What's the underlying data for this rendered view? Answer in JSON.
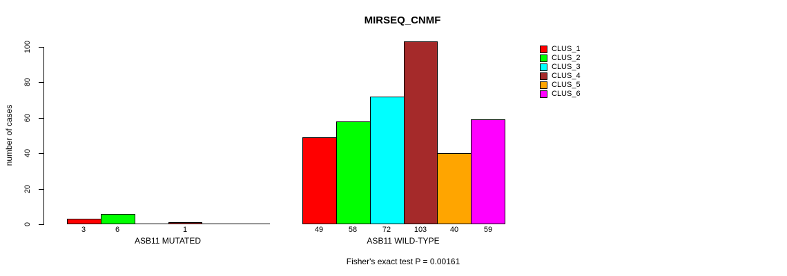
{
  "title": "MIRSEQ_CNMF",
  "footer": "Fisher's exact test P = 0.00161",
  "chart_data": {
    "type": "bar",
    "title": "MIRSEQ_CNMF",
    "xlabel": "",
    "ylabel": "number of cases",
    "ylim": [
      0,
      100
    ],
    "y_ticks": [
      0,
      20,
      40,
      60,
      80,
      100
    ],
    "grid": false,
    "legend_position": "top-right",
    "legend_border": false,
    "clusters": [
      "CLUS_1",
      "CLUS_2",
      "CLUS_3",
      "CLUS_4",
      "CLUS_5",
      "CLUS_6"
    ],
    "colors": [
      "#FF0000",
      "#00FF00",
      "#00FFFF",
      "#A52A2A",
      "#FFA500",
      "#FF00FF"
    ],
    "groups": [
      {
        "label": "ASB11 MUTATED",
        "values": [
          3,
          6,
          0,
          1,
          0,
          0
        ],
        "bar_labels": [
          "3",
          "6",
          "",
          "1",
          "",
          ""
        ]
      },
      {
        "label": "ASB11 WILD-TYPE",
        "values": [
          49,
          58,
          72,
          103,
          40,
          59
        ],
        "bar_labels": [
          "49",
          "58",
          "72",
          "103",
          "40",
          "59"
        ]
      }
    ],
    "annotation": "Fisher's exact test P = 0.00161"
  }
}
